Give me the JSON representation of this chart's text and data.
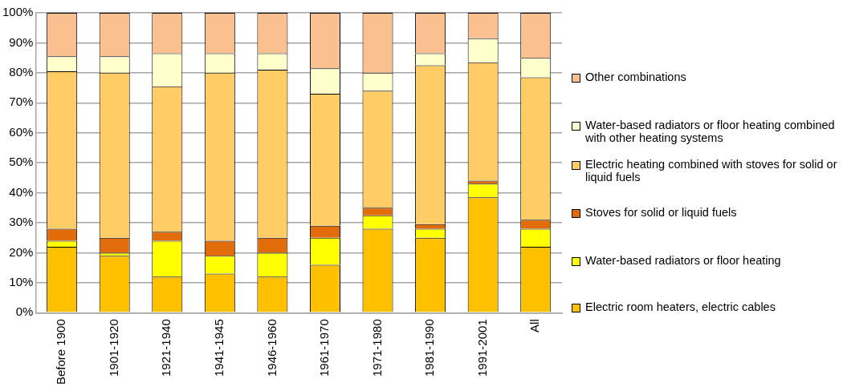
{
  "chart_data": {
    "type": "bar",
    "stacked": true,
    "categories": [
      "Before 1900",
      "1901-1920",
      "1921-1940",
      "1941-1945",
      "1946-1960",
      "1961-1970",
      "1971-1980",
      "1981-1990",
      "1991-2001",
      "All"
    ],
    "series": [
      {
        "name": "Electric room heaters, electric cables",
        "color": "#ffc000",
        "values": [
          22,
          19,
          12,
          13,
          12,
          16,
          28,
          25,
          38.5,
          22
        ]
      },
      {
        "name": "Water-based radiators or floor heating",
        "color": "#ffff00",
        "values": [
          2,
          1,
          12,
          6,
          8,
          9,
          4.5,
          3,
          4.5,
          6
        ]
      },
      {
        "name": "Stoves for solid or liquid fuels",
        "color": "#e26b0a",
        "values": [
          4,
          5,
          3,
          5,
          5,
          4,
          2.5,
          1.5,
          1,
          3
        ]
      },
      {
        "name": "Electric heating combined with stoves for solid or liquid fuels",
        "color": "#ffcc66",
        "values": [
          52.5,
          55,
          48.5,
          56,
          56,
          44,
          39,
          53,
          39.5,
          47.5
        ]
      },
      {
        "name": "Water-based radiators or floor heating combined with other heating systems",
        "color": "#ffffcc",
        "values": [
          5,
          5.5,
          11,
          6.5,
          5.5,
          8.5,
          6,
          4,
          8,
          6.5
        ]
      },
      {
        "name": "Other combinations",
        "color": "#fac090",
        "values": [
          14.5,
          14.5,
          13.5,
          13.5,
          13.5,
          18.5,
          20,
          13.5,
          8.5,
          15
        ]
      }
    ],
    "ylim": [
      0,
      100
    ],
    "yticks": [
      {
        "value": 0,
        "label": "0%"
      },
      {
        "value": 10,
        "label": "10%"
      },
      {
        "value": 20,
        "label": "20%"
      },
      {
        "value": 30,
        "label": "30%"
      },
      {
        "value": 40,
        "label": "40%"
      },
      {
        "value": 50,
        "label": "50%"
      },
      {
        "value": 60,
        "label": "60%"
      },
      {
        "value": 70,
        "label": "70%"
      },
      {
        "value": 80,
        "label": "80%"
      },
      {
        "value": 90,
        "label": "90%"
      },
      {
        "value": 100,
        "label": "100%"
      }
    ],
    "grid": "y",
    "legend": "right"
  }
}
